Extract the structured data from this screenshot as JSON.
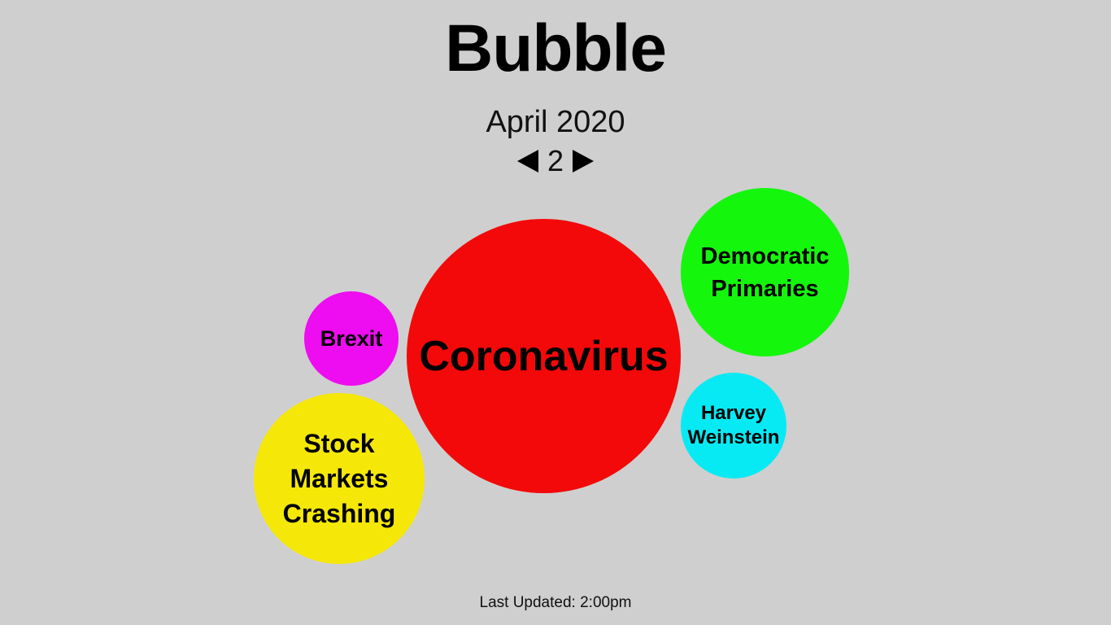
{
  "header": {
    "title": "Bubble",
    "date": "April 2020",
    "page": "2",
    "prev_icon": "triangle-left-icon",
    "next_icon": "triangle-right-icon"
  },
  "bubbles": [
    {
      "id": "coronavirus",
      "label": "Coronavirus",
      "color": "#f30909"
    },
    {
      "id": "democratic",
      "label": "Democratic\nPrimaries",
      "color": "#15f60d"
    },
    {
      "id": "brexit",
      "label": "Brexit",
      "color": "#ee0cf0"
    },
    {
      "id": "harvey",
      "label": "Harvey\nWeinstein",
      "color": "#08eaf3"
    },
    {
      "id": "stock",
      "label": "Stock\nMarkets\nCrashing",
      "color": "#f5e809"
    }
  ],
  "footer": {
    "updated": "Last Updated: 2:00pm"
  }
}
